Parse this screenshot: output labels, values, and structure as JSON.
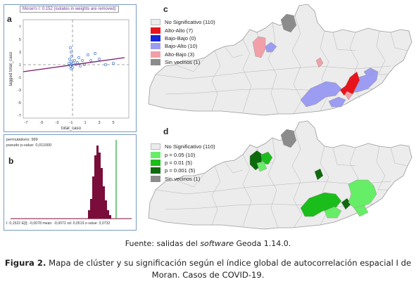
{
  "panels": {
    "a": {
      "label": "a",
      "title": "Moran's I: 0.152 (isolates in weights are removed)",
      "ylabel": "lagged total_caso",
      "xlabel": "total_caso",
      "xticks": [
        "-7",
        "-5",
        "-3",
        "-1",
        "1",
        "3",
        "5"
      ],
      "yticks": [
        "7",
        "5",
        "3",
        "1",
        "-1",
        "-3",
        "-5",
        "-7"
      ]
    },
    "b": {
      "label": "b",
      "permutations": "permutations: 999",
      "pseudo_p": "pseudo p-value: 0,011000",
      "stats": "I: 0,1522   E[I]: -0,0078   mean: -0,0072   sd: 0,0519   z-value: 3,0732"
    },
    "c": {
      "label": "c",
      "legend": [
        {
          "label": "No Significativo (110)",
          "color": "#ececec"
        },
        {
          "label": "Alto-Alto (7)",
          "color": "#e8141c"
        },
        {
          "label": "Bajo-Bajo (0)",
          "color": "#1526d8"
        },
        {
          "label": "Bajo-Alto (10)",
          "color": "#9c9cf2"
        },
        {
          "label": "Alto-Bajo (3)",
          "color": "#f2a0a8"
        },
        {
          "label": "Sin vecinos (1)",
          "color": "#8c8c8c"
        }
      ]
    },
    "d": {
      "label": "d",
      "legend": [
        {
          "label": "No Significativo (110)",
          "color": "#ececec"
        },
        {
          "label": "p = 0.05 (10)",
          "color": "#66ee66"
        },
        {
          "label": "p = 0.01 (5)",
          "color": "#1bbd1b"
        },
        {
          "label": "p = 0.001 (5)",
          "color": "#0d6a0d"
        },
        {
          "label": "Sin vecinos (1)",
          "color": "#8c8c8c"
        }
      ]
    }
  },
  "source": {
    "prefix": "Fuente: salidas del ",
    "italic": "software",
    "suffix": " Geoda 1.14.0."
  },
  "caption": {
    "bold": "Figura 2.",
    "text": " Mapa de clúster y su significación según el índice global de autocorrelación espacial I de Moran. Casos de COVID-19."
  },
  "colors": {
    "regression_line": "#7a1d6a",
    "points": "#4a7fd4",
    "histogram": "#7a0d3a",
    "observed_line": "#22aa33",
    "map_base": "#ececec",
    "map_border": "#9a9a9a"
  }
}
